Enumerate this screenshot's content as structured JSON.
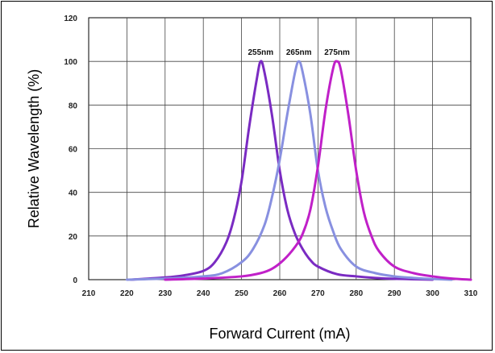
{
  "chart_data": {
    "type": "line",
    "title": "",
    "xlabel": "Forward Current (mA)",
    "ylabel": "Relative Wavelength (%)",
    "xlim": [
      210,
      310
    ],
    "ylim": [
      0,
      120
    ],
    "x_ticks": [
      210,
      220,
      230,
      240,
      250,
      260,
      270,
      280,
      290,
      300,
      310
    ],
    "y_ticks": [
      0,
      20,
      40,
      60,
      80,
      100,
      120
    ],
    "grid": true,
    "legend": "none",
    "series": [
      {
        "name": "255nm",
        "color": "#7a2bc2",
        "x": [
          221,
          230,
          235,
          240,
          243,
          246,
          248,
          250,
          252,
          254,
          255,
          256,
          258,
          260,
          262,
          264,
          266,
          268,
          270,
          275,
          280,
          285,
          290,
          295,
          300
        ],
        "y": [
          0,
          1,
          2,
          4,
          8,
          17,
          28,
          45,
          70,
          92,
          100,
          95,
          75,
          50,
          32,
          21,
          14,
          9,
          6,
          2.5,
          1.5,
          0.8,
          0.4,
          0.2,
          0
        ]
      },
      {
        "name": "265nm",
        "color": "#8890e0",
        "x": [
          220,
          230,
          240,
          245,
          250,
          253,
          256,
          258,
          260,
          262,
          264,
          265,
          266,
          268,
          270,
          272,
          274,
          276,
          280,
          285,
          290,
          295,
          300,
          305
        ],
        "y": [
          0,
          0.5,
          1.5,
          3,
          8,
          14,
          25,
          38,
          55,
          76,
          95,
          100,
          95,
          76,
          50,
          33,
          22,
          14,
          6,
          3,
          1.5,
          0.8,
          0.3,
          0
        ]
      },
      {
        "name": "275nm",
        "color": "#c020c8",
        "x": [
          230,
          240,
          250,
          255,
          258,
          261,
          264,
          266,
          268,
          270,
          272,
          274,
          275,
          276,
          278,
          280,
          282,
          284,
          286,
          290,
          295,
          300,
          305,
          310
        ],
        "y": [
          0,
          0.5,
          1.5,
          3,
          5,
          9,
          15,
          21,
          32,
          52,
          78,
          97,
          100,
          96,
          75,
          50,
          31,
          20,
          13,
          6,
          3,
          1.5,
          0.5,
          0
        ]
      }
    ],
    "annotations": [
      {
        "text": "255nm",
        "series": 0
      },
      {
        "text": "265nm",
        "series": 1
      },
      {
        "text": "275nm",
        "series": 2
      }
    ]
  }
}
